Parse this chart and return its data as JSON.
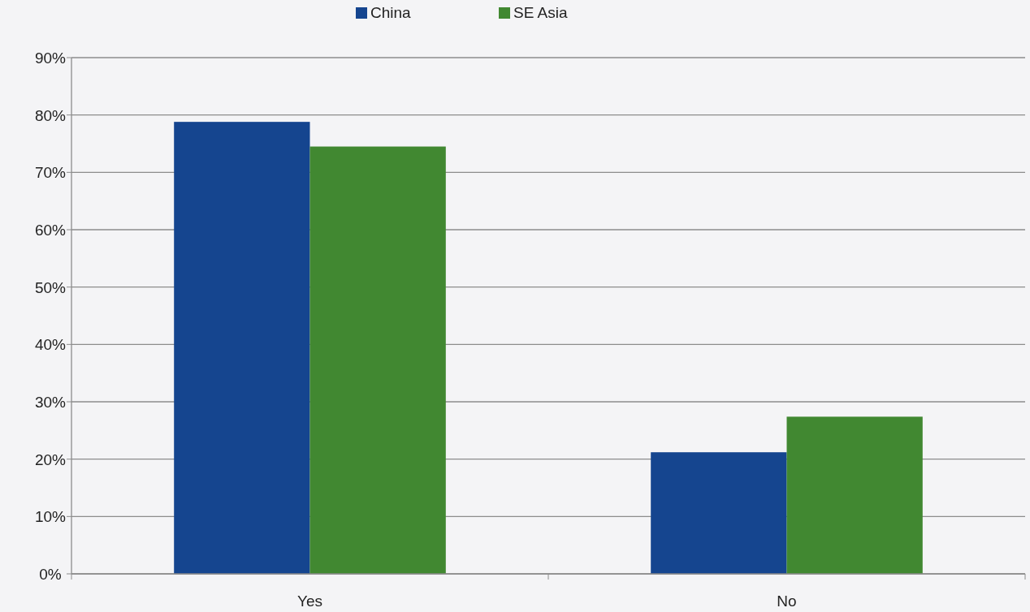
{
  "chart_data": {
    "type": "bar",
    "categories": [
      "Yes",
      "No"
    ],
    "series": [
      {
        "name": "China",
        "color": "#15458f",
        "values": [
          78.8,
          21.2
        ]
      },
      {
        "name": "SE Asia",
        "color": "#418831",
        "values": [
          74.5,
          27.4
        ]
      }
    ],
    "ylim": [
      0,
      90
    ],
    "yticks": [
      {
        "value": 0,
        "label": "0%"
      },
      {
        "value": 10,
        "label": "10%"
      },
      {
        "value": 20,
        "label": "20%"
      },
      {
        "value": 30,
        "label": "30%"
      },
      {
        "value": 40,
        "label": "40%"
      },
      {
        "value": 50,
        "label": "50%"
      },
      {
        "value": 60,
        "label": "60%"
      },
      {
        "value": 70,
        "label": "70%"
      },
      {
        "value": 80,
        "label": "80%"
      },
      {
        "value": 90,
        "label": "90%"
      }
    ],
    "grid": "y",
    "legend": "top"
  }
}
